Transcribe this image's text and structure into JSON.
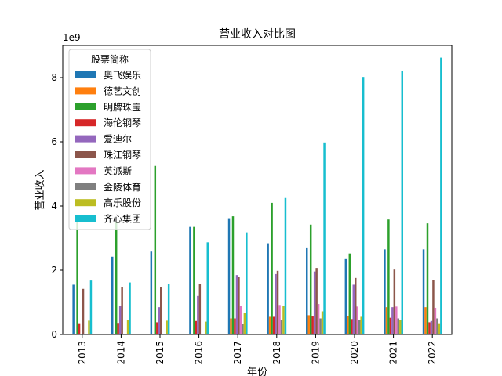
{
  "chart_data": {
    "type": "bar",
    "title": "营业收入对比图",
    "xlabel": "年份",
    "ylabel": "营业收入",
    "y_multiplier_label": "1e9",
    "ylim": [
      0,
      9.0
    ],
    "yticks": [
      0,
      2,
      4,
      6,
      8
    ],
    "categories": [
      "2013",
      "2014",
      "2015",
      "2016",
      "2017",
      "2018",
      "2019",
      "2020",
      "2021",
      "2022"
    ],
    "legend": {
      "title": "股票简称",
      "position": "top-left"
    },
    "grid": false,
    "series": [
      {
        "name": "奥飞娱乐",
        "color": "#1f77b4",
        "values": [
          1.55,
          2.42,
          2.58,
          3.35,
          3.62,
          2.84,
          2.71,
          2.37,
          2.65,
          2.65
        ]
      },
      {
        "name": "德艺文创",
        "color": "#ff7f0e",
        "values": [
          0.0,
          0.0,
          0.0,
          0.0,
          0.5,
          0.55,
          0.6,
          0.58,
          0.85,
          0.85
        ]
      },
      {
        "name": "明牌珠宝",
        "color": "#2ca02c",
        "values": [
          3.5,
          3.5,
          5.25,
          3.35,
          3.68,
          4.1,
          3.42,
          2.52,
          3.58,
          3.46
        ]
      },
      {
        "name": "海伦钢琴",
        "color": "#d62728",
        "values": [
          0.35,
          0.36,
          0.38,
          0.42,
          0.5,
          0.55,
          0.56,
          0.48,
          0.52,
          0.38
        ]
      },
      {
        "name": "爱迪尔",
        "color": "#9467bd",
        "values": [
          0.0,
          0.9,
          0.85,
          1.2,
          1.85,
          1.88,
          1.96,
          1.55,
          0.85,
          0.42
        ]
      },
      {
        "name": "珠江钢琴",
        "color": "#8c564b",
        "values": [
          1.42,
          1.48,
          1.48,
          1.58,
          1.8,
          1.98,
          2.07,
          1.76,
          2.02,
          1.69
        ]
      },
      {
        "name": "英派斯",
        "color": "#e377c2",
        "values": [
          0.0,
          0.0,
          0.0,
          0.0,
          0.9,
          0.92,
          0.95,
          0.87,
          0.87,
          0.83
        ]
      },
      {
        "name": "金陵体育",
        "color": "#7f7f7f",
        "values": [
          0.0,
          0.0,
          0.0,
          0.0,
          0.33,
          0.45,
          0.5,
          0.45,
          0.5,
          0.5
        ]
      },
      {
        "name": "高乐股份",
        "color": "#bcbd22",
        "values": [
          0.43,
          0.45,
          0.43,
          0.4,
          0.68,
          0.88,
          0.72,
          0.55,
          0.45,
          0.35
        ]
      },
      {
        "name": "齐心集团",
        "color": "#17becf",
        "values": [
          1.68,
          1.62,
          1.58,
          2.87,
          3.18,
          4.25,
          5.98,
          8.02,
          8.22,
          8.62
        ]
      }
    ]
  }
}
